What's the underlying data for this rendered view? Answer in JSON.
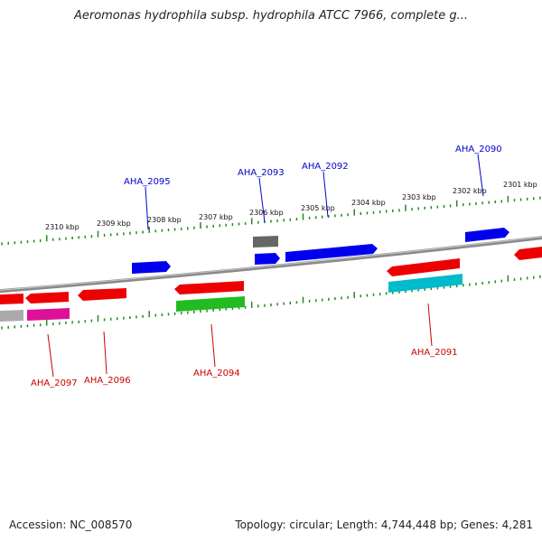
{
  "title": "Aeromonas hydrophila subsp. hydrophila ATCC 7966, complete g...",
  "footer": {
    "accession": "Accession: NC_008570",
    "summary": "Topology: circular; Length: 4,744,448 bp; Genes: 4,281"
  },
  "scale_ticks": [
    "2310 kbp",
    "2309 kbp",
    "2308 kbp",
    "2307 kbp",
    "2306 kbp",
    "2305 kbp",
    "2304 kbp",
    "2303 kbp",
    "2302 kbp",
    "2301 kbp"
  ],
  "gene_labels": {
    "forward": [
      "AHA_2095",
      "AHA_2093",
      "AHA_2092",
      "AHA_2090"
    ],
    "reverse": [
      "AHA_2097",
      "AHA_2096",
      "AHA_2094",
      "AHA_2091"
    ]
  },
  "colors": {
    "forward_label": "#0000cc",
    "reverse_label": "#cc0000",
    "blue_gene": "#0000ee",
    "red_gene": "#ee0000",
    "green_gene": "#22bb22",
    "cyan_gene": "#00bbcc",
    "magenta_gene": "#dd1199",
    "gray_gene": "#aaaaaa",
    "dark_gray_gene": "#666666",
    "scale": "#228822",
    "backbone": "#888888"
  }
}
